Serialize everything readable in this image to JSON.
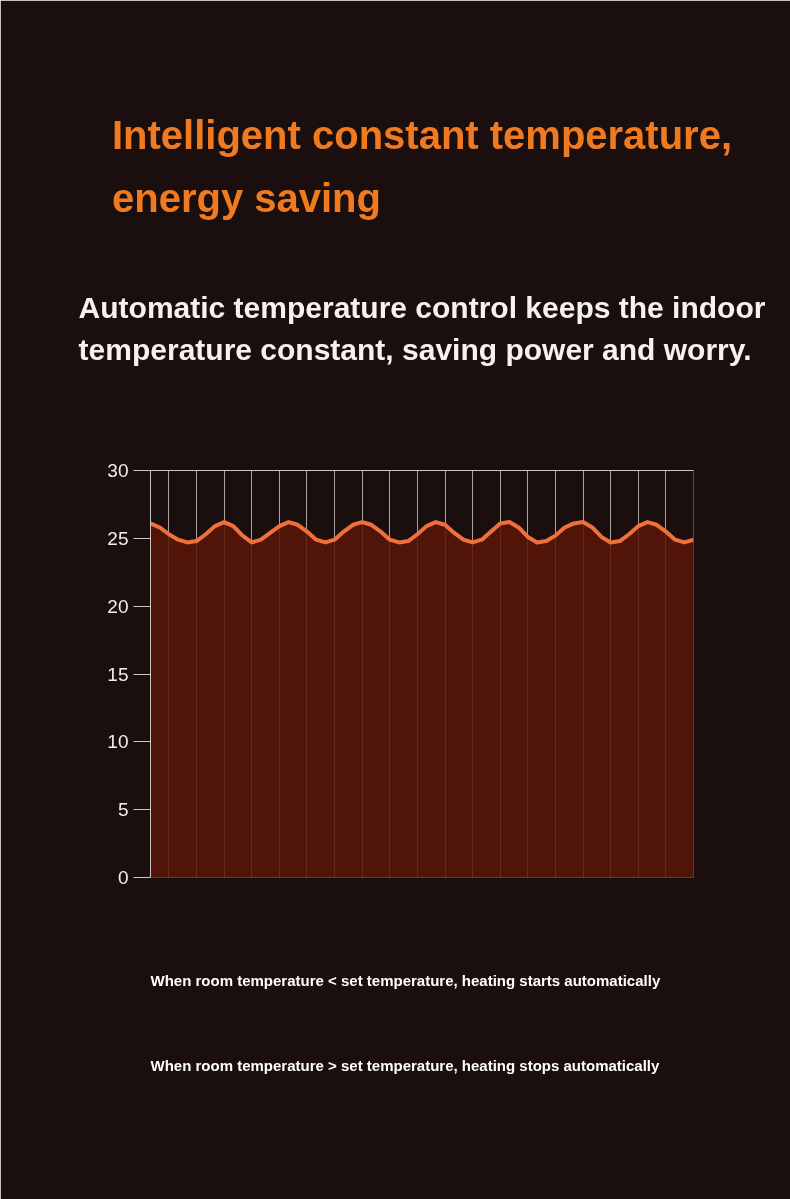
{
  "chart_data": {
    "type": "area",
    "title": "Intelligent constant temperature, energy saving",
    "subtitle": "Automatic temperature control keeps the indoor temperature  constant, saving power and worry.",
    "annotations": [
      "When room temperature  <  set temperature, heating starts automatically",
      "When room temperature  >  set temperature, heating stops automatically"
    ],
    "categories": [
      null,
      null,
      null,
      null,
      null,
      null,
      null,
      null,
      null,
      null,
      null,
      null,
      null,
      null,
      null,
      null,
      null,
      null,
      null,
      null,
      null,
      null,
      null,
      null,
      null,
      null,
      null,
      null,
      null,
      null,
      null,
      null,
      null,
      null,
      null,
      null,
      null,
      null,
      null,
      null,
      null,
      null,
      null,
      null,
      null,
      null,
      null,
      null,
      null,
      null,
      null,
      null,
      null,
      null,
      null,
      null,
      null,
      null,
      null,
      null
    ],
    "series": [
      {
        "color": "#f0703a",
        "values": [
          26.1,
          25.8,
          25.3,
          24.9,
          24.7,
          24.8,
          25.3,
          25.9,
          26.2,
          25.9,
          25.2,
          24.7,
          24.9,
          25.4,
          25.9,
          26.2,
          26.0,
          25.5,
          24.9,
          24.7,
          24.9,
          25.5,
          26.0,
          26.2,
          26.0,
          25.5,
          24.9,
          24.7,
          24.8,
          25.3,
          25.9,
          26.2,
          26.0,
          25.4,
          24.9,
          24.7,
          24.9,
          25.5,
          26.1,
          26.2,
          25.8,
          25.1,
          24.7,
          24.8,
          25.2,
          25.8,
          26.1,
          26.2,
          25.8,
          25.1,
          24.7,
          24.8,
          25.3,
          25.9,
          26.2,
          26.0,
          25.5,
          24.9,
          24.7,
          24.9
        ]
      }
    ],
    "ylim": [
      0,
      30
    ],
    "yticks": [
      0,
      5,
      10,
      15,
      20,
      25,
      30
    ],
    "grid": "x"
  }
}
